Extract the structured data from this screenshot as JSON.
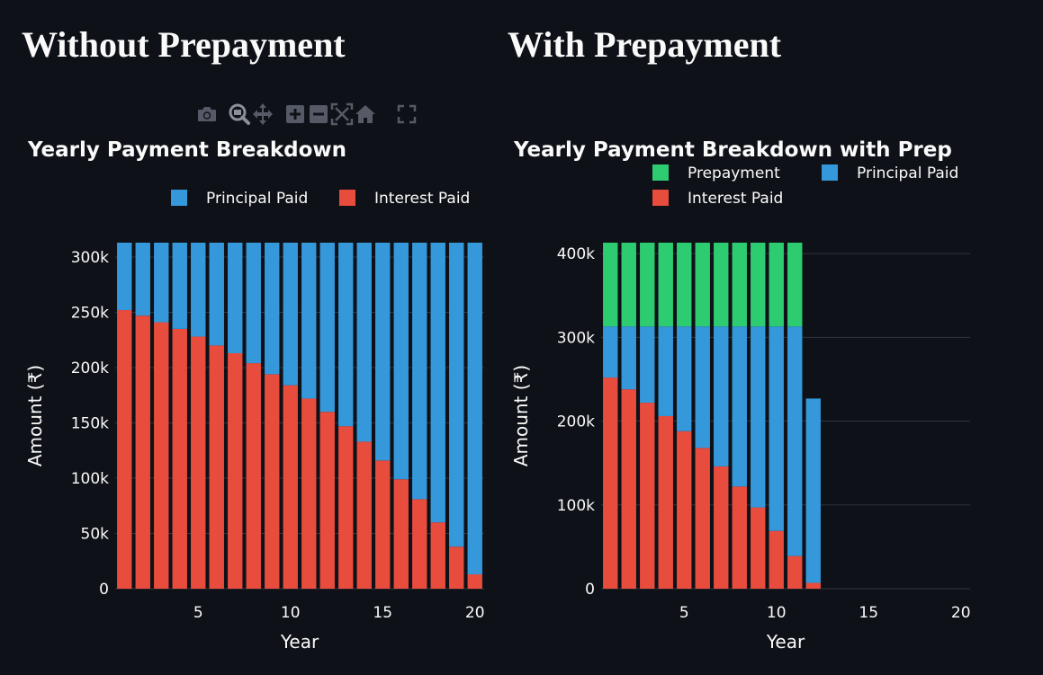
{
  "headings": {
    "left": "Without Prepayment",
    "right": "With Prepayment"
  },
  "modebar": [
    {
      "name": "camera-icon",
      "label": "Download plot as a png"
    },
    {
      "name": "zoom-icon",
      "label": "Zoom"
    },
    {
      "name": "pan-icon",
      "label": "Pan"
    },
    {
      "name": "zoom-in-icon",
      "label": "Zoom in"
    },
    {
      "name": "zoom-out-icon",
      "label": "Zoom out"
    },
    {
      "name": "autoscale-icon",
      "label": "Autoscale"
    },
    {
      "name": "reset-axes-icon",
      "label": "Reset axes"
    },
    {
      "name": "fullscreen-icon",
      "label": "Fullscreen"
    }
  ],
  "colors": {
    "background": "#0e1117",
    "principal": "#3498db",
    "interest": "#e74c3c",
    "prepayment": "#2ecc71",
    "text": "#fafafa",
    "grid": "#31333f"
  },
  "chart_data": [
    {
      "type": "bar",
      "stacked": true,
      "title": "Yearly Payment Breakdown",
      "xlabel": "Year",
      "ylabel": "Amount (₹)",
      "x": [
        1,
        2,
        3,
        4,
        5,
        6,
        7,
        8,
        9,
        10,
        11,
        12,
        13,
        14,
        15,
        16,
        17,
        18,
        19,
        20
      ],
      "xlim": [
        0.5,
        20.5
      ],
      "xticks": [
        5,
        10,
        15,
        20
      ],
      "xtick_labels": [
        "5",
        "10",
        "15",
        "20"
      ],
      "ylim": [
        0,
        313000
      ],
      "yticks": [
        0,
        50000,
        100000,
        150000,
        200000,
        250000,
        300000
      ],
      "ytick_labels": [
        "0",
        "50k",
        "100k",
        "150k",
        "200k",
        "250k",
        "300k"
      ],
      "grid": true,
      "legend": {
        "placement": "top-right",
        "orientation": "horizontal",
        "entries": [
          "Principal Paid",
          "Interest Paid"
        ]
      },
      "series": [
        {
          "name": "Interest Paid",
          "color": "#e74c3c",
          "values": [
            252000,
            247000,
            241000,
            235000,
            228000,
            220000,
            213000,
            204000,
            194000,
            184000,
            172000,
            160000,
            147000,
            133000,
            116000,
            99000,
            81000,
            60000,
            38000,
            13000
          ]
        },
        {
          "name": "Principal Paid",
          "color": "#3498db",
          "values": [
            61000,
            66000,
            72000,
            78000,
            85000,
            93000,
            100000,
            109000,
            119000,
            129000,
            141000,
            153000,
            166000,
            180000,
            197000,
            214000,
            232000,
            253000,
            275000,
            300000
          ]
        }
      ]
    },
    {
      "type": "bar",
      "stacked": true,
      "title": "Yearly Payment Breakdown with Prep",
      "xlabel": "Year",
      "ylabel": "Amount (₹)",
      "x": [
        1,
        2,
        3,
        4,
        5,
        6,
        7,
        8,
        9,
        10,
        11,
        12
      ],
      "xlim": [
        0.5,
        20.5
      ],
      "xticks": [
        5,
        10,
        15,
        20
      ],
      "xtick_labels": [
        "5",
        "10",
        "15",
        "20"
      ],
      "ylim": [
        0,
        413000
      ],
      "yticks": [
        0,
        100000,
        200000,
        300000,
        400000
      ],
      "ytick_labels": [
        "0",
        "100k",
        "200k",
        "300k",
        "400k"
      ],
      "grid": true,
      "legend": {
        "placement": "top-right",
        "orientation": "horizontal",
        "entries": [
          "Prepayment",
          "Principal Paid",
          "Interest Paid"
        ]
      },
      "series": [
        {
          "name": "Interest Paid",
          "color": "#e74c3c",
          "values": [
            252000,
            238000,
            222000,
            206000,
            188000,
            168000,
            146000,
            122000,
            97000,
            69000,
            39000,
            7000
          ]
        },
        {
          "name": "Principal Paid",
          "color": "#3498db",
          "values": [
            61000,
            75000,
            91000,
            107000,
            125000,
            145000,
            167000,
            191000,
            216000,
            244000,
            274000,
            220000
          ]
        },
        {
          "name": "Prepayment",
          "color": "#2ecc71",
          "values": [
            100000,
            100000,
            100000,
            100000,
            100000,
            100000,
            100000,
            100000,
            100000,
            100000,
            100000,
            0
          ]
        }
      ]
    }
  ]
}
